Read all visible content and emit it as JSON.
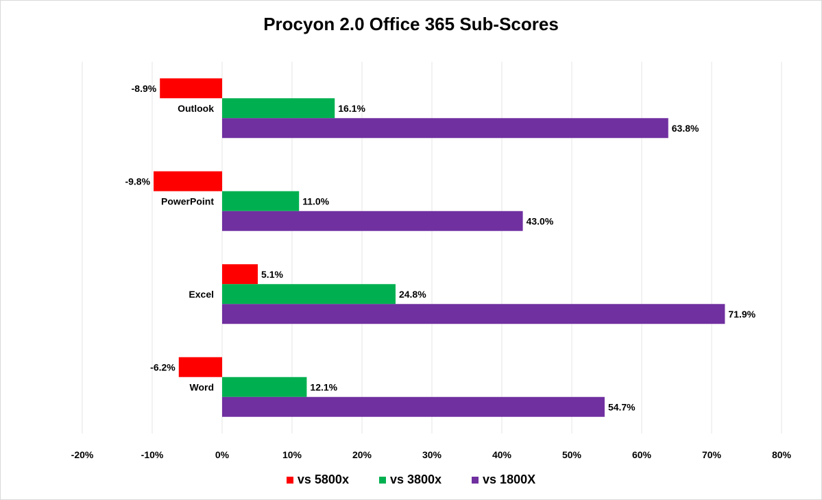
{
  "chart_data": {
    "type": "bar",
    "orientation": "horizontal",
    "title": "Procyon 2.0 Office 365 Sub-Scores",
    "categories": [
      "Outlook",
      "PowerPoint",
      "Excel",
      "Word"
    ],
    "series": [
      {
        "name": "vs 5800x",
        "color": "#ff0000",
        "values": [
          -8.9,
          -9.8,
          5.1,
          -6.2
        ],
        "labels": [
          "-8.9%",
          "-9.8%",
          "5.1%",
          "-6.2%"
        ]
      },
      {
        "name": "vs 3800x",
        "color": "#00b050",
        "values": [
          16.1,
          11.0,
          24.8,
          12.1
        ],
        "labels": [
          "16.1%",
          "11.0%",
          "24.8%",
          "12.1%"
        ]
      },
      {
        "name": "vs 1800X",
        "color": "#7030a0",
        "values": [
          63.8,
          43.0,
          71.9,
          54.7
        ],
        "labels": [
          "63.8%",
          "43.0%",
          "71.9%",
          "54.7%"
        ]
      }
    ],
    "xlim": [
      -20,
      80
    ],
    "xticks": [
      -20,
      -10,
      0,
      10,
      20,
      30,
      40,
      50,
      60,
      70,
      80
    ],
    "xtick_labels": [
      "-20%",
      "-10%",
      "0%",
      "10%",
      "20%",
      "30%",
      "40%",
      "50%",
      "60%",
      "70%",
      "80%"
    ],
    "grid": true,
    "gridline_color": "#e6e6e6",
    "legend_position": "bottom"
  }
}
